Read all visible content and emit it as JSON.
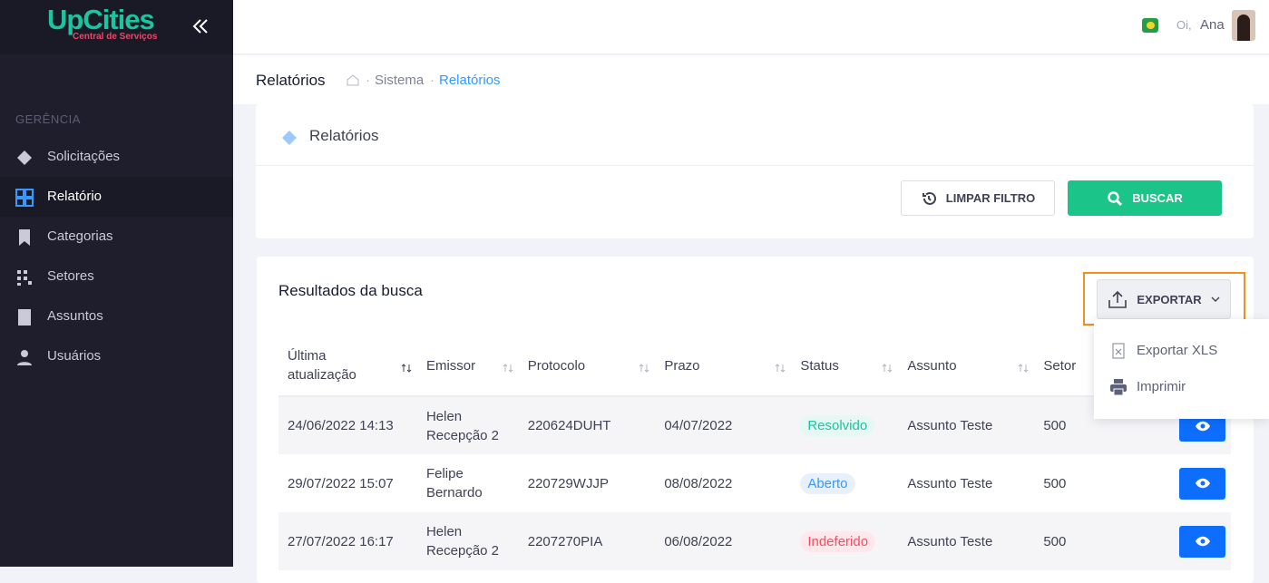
{
  "logo": {
    "name": "UpCities",
    "tagline": "Central de Serviços"
  },
  "header": {
    "greeting": "Oi,",
    "user": "Ana"
  },
  "breadcrumb": {
    "title": "Relatórios",
    "items": [
      "Sistema",
      "Relatórios"
    ]
  },
  "sidebar": {
    "section": "GERÊNCIA",
    "items": [
      "Solicitações",
      "Relatório",
      "Categorias",
      "Setores",
      "Assuntos",
      "Usuários"
    ]
  },
  "panel": {
    "title": "Relatórios",
    "buttons": [
      "LIMPAR FILTRO",
      "BUSCAR"
    ]
  },
  "results": {
    "title": "Resultados da busca",
    "export": "EXPORTAR",
    "menu": [
      "Exportar XLS",
      "Imprimir"
    ]
  },
  "table": {
    "headers": [
      "Última atualização",
      "Emissor",
      "Protocolo",
      "Prazo",
      "Status",
      "Assunto",
      "Setor"
    ],
    "rows": [
      [
        "24/06/2022 14:13",
        "Helen Recepção 2",
        "220624DUHT",
        "04/07/2022",
        "Resolvido",
        "Assunto Teste",
        "500"
      ],
      [
        "29/07/2022 15:07",
        "Felipe Bernardo",
        "220729WJJP",
        "08/08/2022",
        "Aberto",
        "Assunto Teste",
        "500"
      ],
      [
        "27/07/2022 16:17",
        "Helen Recepção 2",
        "2207270PIA",
        "06/08/2022",
        "Indeferido",
        "Assunto Teste",
        "500"
      ]
    ]
  }
}
